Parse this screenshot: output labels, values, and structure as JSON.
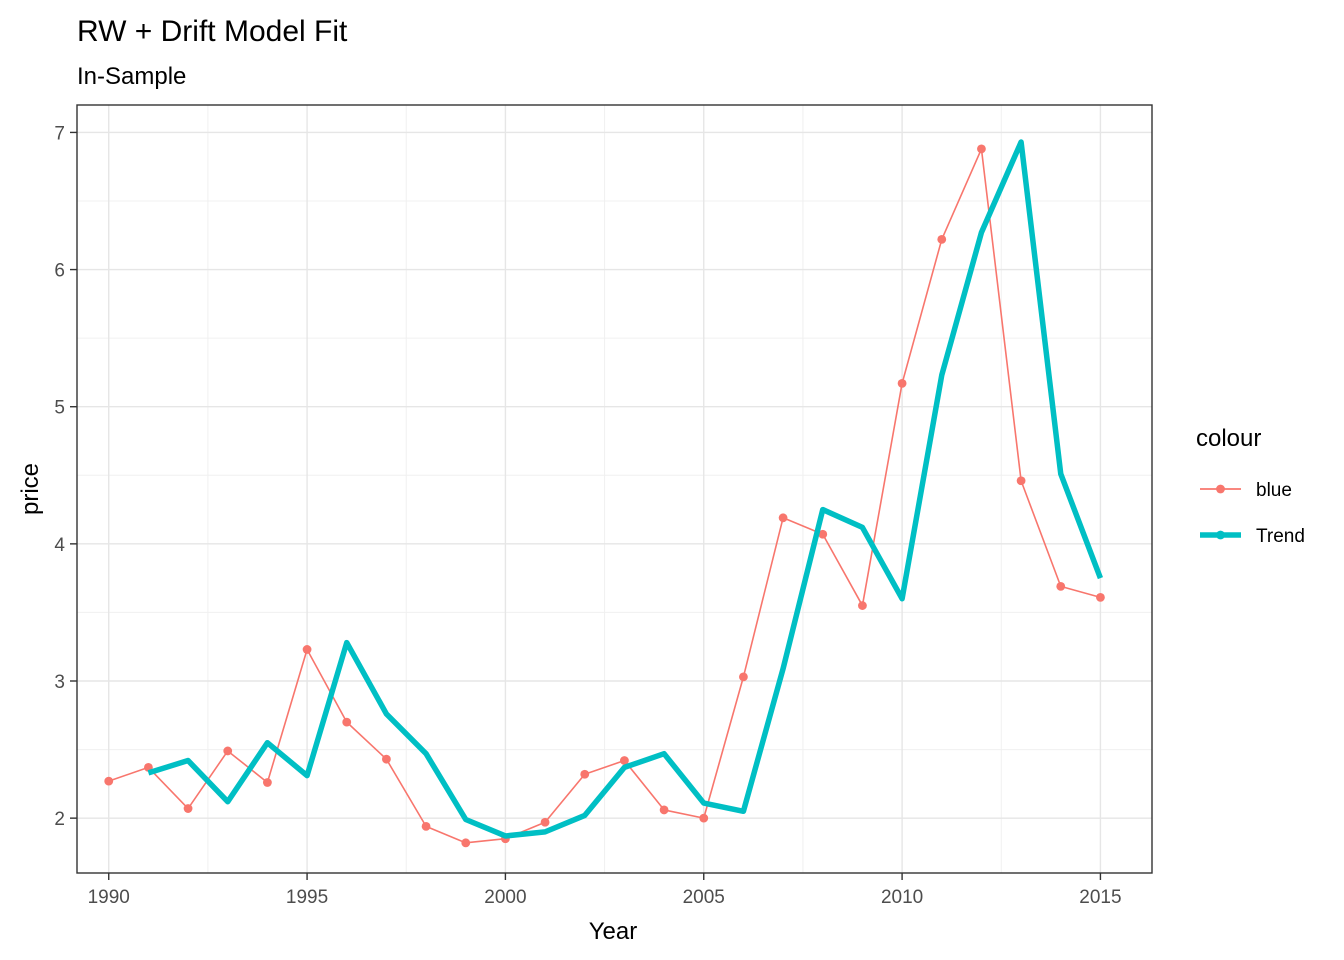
{
  "chart_data": {
    "type": "line",
    "title": "RW + Drift Model Fit",
    "subtitle": "In-Sample",
    "xlabel": "Year",
    "ylabel": "price",
    "xlim": [
      1989.2,
      2016.3
    ],
    "ylim": [
      1.6,
      7.2
    ],
    "x_ticks": [
      1990,
      1995,
      2000,
      2005,
      2010,
      2015
    ],
    "x_tick_labels": [
      "1990",
      "1995",
      "2000",
      "2005",
      "2010",
      "2015"
    ],
    "y_ticks": [
      2,
      3,
      4,
      5,
      6,
      7
    ],
    "y_tick_labels": [
      "2",
      "3",
      "4",
      "5",
      "6",
      "7"
    ],
    "grid": true,
    "legend": {
      "title": "colour",
      "placement": "right",
      "entries": [
        "blue",
        "Trend"
      ]
    },
    "series": [
      {
        "name": "blue",
        "color": "#F8766D",
        "style": "thin line with points",
        "x": [
          1990,
          1991,
          1992,
          1993,
          1994,
          1995,
          1996,
          1997,
          1998,
          1999,
          2000,
          2001,
          2002,
          2003,
          2004,
          2005,
          2006,
          2007,
          2008,
          2009,
          2010,
          2011,
          2012,
          2013,
          2014,
          2015
        ],
        "y": [
          2.27,
          2.37,
          2.07,
          2.49,
          2.26,
          3.23,
          2.7,
          2.43,
          1.94,
          1.82,
          1.85,
          1.97,
          2.32,
          2.42,
          2.06,
          2.0,
          3.03,
          4.19,
          4.07,
          3.55,
          5.17,
          6.22,
          6.88,
          4.46,
          3.69,
          3.61
        ]
      },
      {
        "name": "Trend",
        "color": "#00BFC4",
        "style": "thick line",
        "x": [
          1991,
          1992,
          1993,
          1994,
          1995,
          1996,
          1997,
          1998,
          1999,
          2000,
          2001,
          2002,
          2003,
          2004,
          2005,
          2006,
          2007,
          2008,
          2009,
          2010,
          2011,
          2012,
          2013,
          2014,
          2015
        ],
        "y": [
          2.33,
          2.42,
          2.12,
          2.55,
          2.31,
          3.28,
          2.76,
          2.47,
          1.99,
          1.87,
          1.9,
          2.02,
          2.37,
          2.47,
          2.11,
          2.05,
          3.09,
          4.25,
          4.12,
          3.6,
          5.23,
          6.27,
          6.93,
          4.51,
          3.75
        ]
      }
    ]
  }
}
